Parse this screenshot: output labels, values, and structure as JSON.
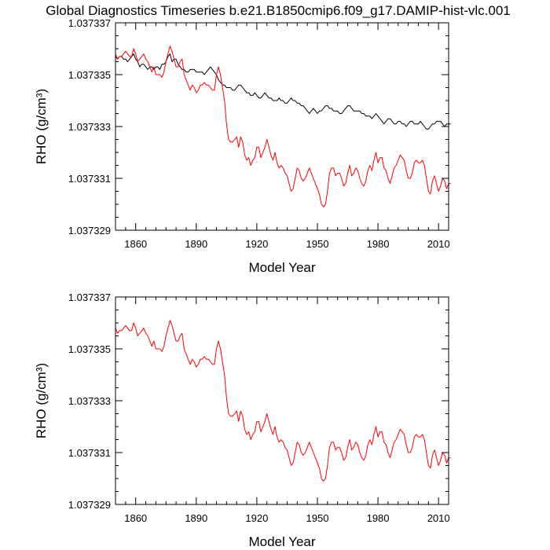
{
  "title": "Global Diagnostics Timeseries b.e21.B1850cmip6.f09_g17.DAMIP-hist-vlc.001",
  "colors": {
    "monthly": "#000000",
    "annual": "#ff0000"
  },
  "chart_data": [
    {
      "type": "line",
      "xlabel": "Model Year",
      "ylabel": "RHO (g/cm³)",
      "xlim": [
        1850,
        2015
      ],
      "ylim": [
        1.037329,
        1.037337
      ],
      "x_ticks": [
        1860,
        1890,
        1920,
        1950,
        1980,
        2010
      ],
      "x_tick_labels": [
        "1860",
        "1890",
        "1920",
        "1950",
        "1980",
        "2010"
      ],
      "y_ticks": [
        1.037329,
        1.037331,
        1.037333,
        1.037335,
        1.037337
      ],
      "y_tick_labels": [
        "1.037329",
        "1.037331",
        "1.037333",
        "1.037335",
        "1.037337"
      ],
      "series": [
        {
          "values": [
            1.0373357,
            1.0373356,
            1.0373357,
            1.0373357,
            1.0373356,
            1.0373356,
            1.0373355,
            1.0373356,
            1.0373357,
            1.0373358,
            1.0373356,
            1.0373355,
            1.0373353,
            1.0373354,
            1.0373354,
            1.0373353,
            1.0373352,
            1.0373353,
            1.0373353,
            1.0373352,
            1.0373353,
            1.0373353,
            1.0373352,
            1.0373354,
            1.0373354,
            1.0373355,
            1.0373357,
            1.0373358,
            1.0373355,
            1.0373356,
            1.0373356,
            1.0373354,
            1.0373353,
            1.0373352,
            1.0373352,
            1.0373351,
            1.0373351,
            1.0373352,
            1.0373352,
            1.0373352,
            1.0373351,
            1.0373351,
            1.0373351,
            1.0373351,
            1.037335,
            1.0373351,
            1.0373352,
            1.0373353,
            1.0373352,
            1.0373351,
            1.037335,
            1.0373348,
            1.0373347,
            1.0373346,
            1.0373346,
            1.0373345,
            1.0373345,
            1.0373345,
            1.0373344,
            1.0373344,
            1.0373345,
            1.0373346,
            1.0373346,
            1.0373345,
            1.0373344,
            1.0373343,
            1.0373343,
            1.0373342,
            1.0373342,
            1.0373343,
            1.0373342,
            1.0373341,
            1.0373341,
            1.0373342,
            1.0373343,
            1.0373342,
            1.0373341,
            1.0373341,
            1.037334,
            1.037334,
            1.037334,
            1.0373341,
            1.037334,
            1.037334,
            1.0373339,
            1.0373339,
            1.037334,
            1.0373341,
            1.037334,
            1.037334,
            1.0373339,
            1.0373339,
            1.0373338,
            1.0373338,
            1.0373337,
            1.0373336,
            1.0373335,
            1.0373336,
            1.0373337,
            1.0373336,
            1.0373335,
            1.0373336,
            1.0373336,
            1.0373337,
            1.0373338,
            1.0373338,
            1.0373337,
            1.0373337,
            1.0373336,
            1.0373336,
            1.0373336,
            1.0373335,
            1.0373335,
            1.0373336,
            1.0373337,
            1.0373338,
            1.0373338,
            1.0373337,
            1.0373336,
            1.0373336,
            1.0373336,
            1.0373336,
            1.0373335,
            1.0373335,
            1.0373334,
            1.0373334,
            1.0373334,
            1.0373333,
            1.0373334,
            1.0373335,
            1.0373334,
            1.0373333,
            1.0373332,
            1.0373331,
            1.0373332,
            1.0373333,
            1.0373333,
            1.0373332,
            1.0373331,
            1.0373331,
            1.0373332,
            1.0373332,
            1.0373331,
            1.0373331,
            1.037333,
            1.0373331,
            1.0373332,
            1.0373332,
            1.0373331,
            1.0373331,
            1.0373331,
            1.0373332,
            1.0373331,
            1.037333,
            1.0373329,
            1.0373329,
            1.037333,
            1.0373331,
            1.0373331,
            1.0373332,
            1.0373332,
            1.0373332,
            1.0373331,
            1.037333,
            1.0373331,
            1.0373331,
            1.0373331
          ]
        },
        {
          "values": [
            1.0373358,
            1.0373356,
            1.0373357,
            1.0373357,
            1.0373358,
            1.0373359,
            1.0373358,
            1.0373357,
            1.0373357,
            1.037336,
            1.0373358,
            1.0373355,
            1.0373356,
            1.0373357,
            1.0373358,
            1.0373356,
            1.0373355,
            1.0373353,
            1.0373351,
            1.0373353,
            1.037335,
            1.037335,
            1.037335,
            1.0373349,
            1.0373351,
            1.0373355,
            1.0373358,
            1.0373361,
            1.0373359,
            1.0373356,
            1.0373353,
            1.0373353,
            1.0373355,
            1.0373356,
            1.037335,
            1.0373348,
            1.0373346,
            1.0373344,
            1.0373346,
            1.0373345,
            1.0373343,
            1.0373344,
            1.0373346,
            1.0373346,
            1.0373347,
            1.0373346,
            1.0373346,
            1.0373345,
            1.0373344,
            1.0373344,
            1.037335,
            1.0373353,
            1.037335,
            1.0373345,
            1.037334,
            1.0373331,
            1.0373325,
            1.0373324,
            1.0373324,
            1.0373325,
            1.0373326,
            1.0373322,
            1.0373326,
            1.0373324,
            1.0373319,
            1.0373317,
            1.0373318,
            1.0373315,
            1.0373317,
            1.0373318,
            1.0373322,
            1.0373322,
            1.0373318,
            1.037332,
            1.0373322,
            1.0373325,
            1.0373322,
            1.0373319,
            1.0373317,
            1.037332,
            1.0373316,
            1.0373314,
            1.0373315,
            1.0373314,
            1.0373312,
            1.0373311,
            1.0373308,
            1.0373305,
            1.0373306,
            1.037331,
            1.0373314,
            1.0373313,
            1.037331,
            1.0373309,
            1.037331,
            1.0373312,
            1.0373314,
            1.0373312,
            1.037331,
            1.0373308,
            1.0373306,
            1.0373304,
            1.03733,
            1.0373299,
            1.03733,
            1.0373305,
            1.0373312,
            1.0373314,
            1.0373314,
            1.0373311,
            1.0373312,
            1.0373312,
            1.037331,
            1.0373307,
            1.0373308,
            1.0373312,
            1.0373315,
            1.0373311,
            1.0373312,
            1.0373314,
            1.0373313,
            1.037331,
            1.0373308,
            1.0373307,
            1.0373309,
            1.0373313,
            1.0373315,
            1.0373313,
            1.0373317,
            1.037332,
            1.0373316,
            1.0373318,
            1.0373318,
            1.0373314,
            1.0373313,
            1.037331,
            1.0373308,
            1.0373311,
            1.0373314,
            1.0373315,
            1.0373317,
            1.0373319,
            1.0373318,
            1.0373317,
            1.0373313,
            1.037331,
            1.037331,
            1.0373312,
            1.0373316,
            1.0373317,
            1.0373316,
            1.0373316,
            1.0373317,
            1.0373315,
            1.037331,
            1.0373305,
            1.0373304,
            1.0373309,
            1.0373311,
            1.0373308,
            1.0373305,
            1.0373307,
            1.037331,
            1.0373309,
            1.0373306,
            1.0373308,
            1.0373308
          ]
        }
      ]
    },
    {
      "type": "line",
      "xlabel": "Model Year",
      "ylabel": "RHO (g/cm³)",
      "xlim": [
        1850,
        2015
      ],
      "ylim": [
        1.037329,
        1.037337
      ],
      "x_ticks": [
        1860,
        1890,
        1920,
        1950,
        1980,
        2010
      ],
      "x_tick_labels": [
        "1860",
        "1890",
        "1920",
        "1950",
        "1980",
        "2010"
      ],
      "y_ticks": [
        1.037329,
        1.037331,
        1.037333,
        1.037335,
        1.037337
      ],
      "y_tick_labels": [
        "1.037329",
        "1.037331",
        "1.037333",
        "1.037335",
        "1.037337"
      ],
      "series": [
        {
          "values": [
            1.0373358,
            1.0373356,
            1.0373357,
            1.0373357,
            1.0373358,
            1.0373359,
            1.0373358,
            1.0373357,
            1.0373357,
            1.037336,
            1.0373358,
            1.0373355,
            1.0373356,
            1.0373357,
            1.0373358,
            1.0373356,
            1.0373355,
            1.0373353,
            1.0373351,
            1.0373353,
            1.037335,
            1.037335,
            1.037335,
            1.0373349,
            1.0373351,
            1.0373355,
            1.0373358,
            1.0373361,
            1.0373359,
            1.0373356,
            1.0373353,
            1.0373353,
            1.0373355,
            1.0373356,
            1.037335,
            1.0373348,
            1.0373346,
            1.0373344,
            1.0373346,
            1.0373345,
            1.0373343,
            1.0373344,
            1.0373346,
            1.0373346,
            1.0373347,
            1.0373346,
            1.0373346,
            1.0373345,
            1.0373344,
            1.0373344,
            1.037335,
            1.0373353,
            1.037335,
            1.0373345,
            1.037334,
            1.0373331,
            1.0373325,
            1.0373324,
            1.0373324,
            1.0373325,
            1.0373326,
            1.0373322,
            1.0373326,
            1.0373324,
            1.0373319,
            1.0373317,
            1.0373318,
            1.0373315,
            1.0373317,
            1.0373318,
            1.0373322,
            1.0373322,
            1.0373318,
            1.037332,
            1.0373322,
            1.0373325,
            1.0373322,
            1.0373319,
            1.0373317,
            1.037332,
            1.0373316,
            1.0373314,
            1.0373315,
            1.0373314,
            1.0373312,
            1.0373311,
            1.0373308,
            1.0373305,
            1.0373306,
            1.037331,
            1.0373314,
            1.0373313,
            1.037331,
            1.0373309,
            1.037331,
            1.0373312,
            1.0373314,
            1.0373312,
            1.037331,
            1.0373308,
            1.0373306,
            1.0373304,
            1.03733,
            1.0373299,
            1.03733,
            1.0373305,
            1.0373312,
            1.0373314,
            1.0373314,
            1.0373311,
            1.0373312,
            1.0373312,
            1.037331,
            1.0373307,
            1.0373308,
            1.0373312,
            1.0373315,
            1.0373311,
            1.0373312,
            1.0373314,
            1.0373313,
            1.037331,
            1.0373308,
            1.0373307,
            1.0373309,
            1.0373313,
            1.0373315,
            1.0373313,
            1.0373317,
            1.037332,
            1.0373316,
            1.0373318,
            1.0373318,
            1.0373314,
            1.0373313,
            1.037331,
            1.0373308,
            1.0373311,
            1.0373314,
            1.0373315,
            1.0373317,
            1.0373319,
            1.0373318,
            1.0373317,
            1.0373313,
            1.037331,
            1.037331,
            1.0373312,
            1.0373316,
            1.0373317,
            1.0373316,
            1.0373316,
            1.0373317,
            1.0373315,
            1.037331,
            1.0373305,
            1.0373304,
            1.0373309,
            1.0373311,
            1.0373308,
            1.0373305,
            1.0373307,
            1.037331,
            1.0373309,
            1.0373306,
            1.0373308,
            1.0373308
          ]
        }
      ]
    }
  ]
}
